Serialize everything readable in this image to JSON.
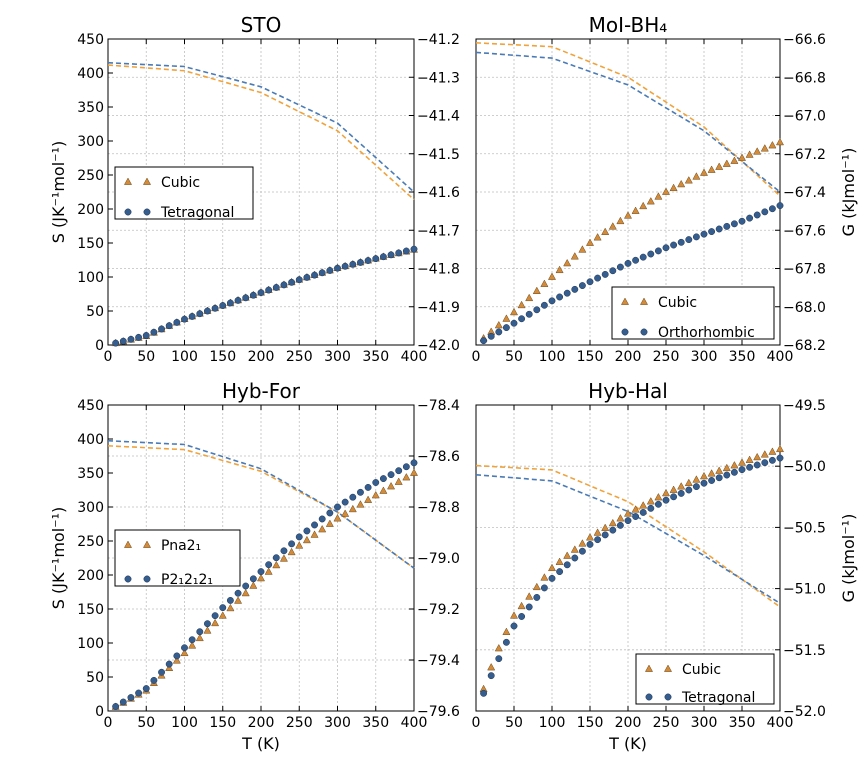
{
  "colors": {
    "orange": "#f0a33c",
    "orange_marker": "#d18b3a",
    "blue": "#355d8e",
    "blue_line": "#4a7bb6",
    "grid": "#bfbfbf"
  },
  "chart_data": [
    {
      "type": "scatter+line",
      "title": "STO",
      "xlabel": "",
      "ylabel": "S (JK⁻¹mol⁻¹)",
      "y2label": "",
      "xlim": [
        0,
        400
      ],
      "ylim": [
        0,
        450
      ],
      "y2lim": [
        -42.0,
        -41.2
      ],
      "xticks": [
        "0",
        "50",
        "100",
        "150",
        "200",
        "250",
        "300",
        "350",
        "400"
      ],
      "yticks": [
        "0",
        "50",
        "100",
        "150",
        "200",
        "250",
        "300",
        "350",
        "400",
        "450"
      ],
      "y2ticks": [
        "−42.0",
        "−41.9",
        "−41.8",
        "−41.7",
        "−41.6",
        "−41.5",
        "−41.4",
        "−41.3",
        "−41.2"
      ],
      "legend": {
        "placement": "center-left",
        "entries": [
          "Cubic",
          "Tetragonal"
        ]
      },
      "grid": true,
      "series": [
        {
          "name": "Cubic",
          "kind": "S",
          "marker": "triangle",
          "color": "orange",
          "x0": 10,
          "x1": 400,
          "points": [
            [
              0,
              0
            ],
            [
              50,
              13
            ],
            [
              100,
              38
            ],
            [
              150,
              58
            ],
            [
              200,
              77
            ],
            [
              250,
              96
            ],
            [
              300,
              113
            ],
            [
              350,
              127
            ],
            [
              400,
              140
            ]
          ]
        },
        {
          "name": "Tetragonal",
          "kind": "S",
          "marker": "circle",
          "color": "blue",
          "x0": 10,
          "x1": 400,
          "points": [
            [
              0,
              0
            ],
            [
              50,
              14
            ],
            [
              100,
              38
            ],
            [
              150,
              58
            ],
            [
              200,
              77
            ],
            [
              250,
              96
            ],
            [
              300,
              113
            ],
            [
              350,
              127
            ],
            [
              400,
              141
            ]
          ]
        },
        {
          "name": "Cubic",
          "kind": "G",
          "color": "orange",
          "points": [
            [
              0,
              -41.268
            ],
            [
              100,
              -41.283
            ],
            [
              200,
              -41.34
            ],
            [
              300,
              -41.44
            ],
            [
              400,
              -41.62
            ]
          ]
        },
        {
          "name": "Tetragonal",
          "kind": "G",
          "color": "blue",
          "points": [
            [
              0,
              -41.262
            ],
            [
              100,
              -41.272
            ],
            [
              200,
              -41.325
            ],
            [
              300,
              -41.42
            ],
            [
              400,
              -41.6
            ]
          ]
        }
      ]
    },
    {
      "type": "scatter+line",
      "title": "MoI-BH₄",
      "xlabel": "",
      "ylabel": "",
      "y2label": "G (kJmol⁻¹)",
      "xlim": [
        0,
        400
      ],
      "ylim": [
        0,
        450
      ],
      "y2lim": [
        -68.2,
        -66.6
      ],
      "xticks": [
        "0",
        "50",
        "100",
        "150",
        "200",
        "250",
        "300",
        "350",
        "400"
      ],
      "yticks": [],
      "y2ticks": [
        "−68.2",
        "−68.0",
        "−67.8",
        "−67.6",
        "−67.4",
        "−67.2",
        "−67.0",
        "−66.8",
        "−66.6"
      ],
      "legend": {
        "placement": "lower-right",
        "entries": [
          "Cubic",
          "Orthorhombic"
        ]
      },
      "grid": true,
      "series": [
        {
          "name": "Cubic",
          "kind": "S",
          "marker": "triangle",
          "color": "orange",
          "x0": 10,
          "x1": 400,
          "points": [
            [
              0,
              0
            ],
            [
              50,
              48
            ],
            [
              100,
              100
            ],
            [
              150,
              150
            ],
            [
              200,
              190
            ],
            [
              250,
              225
            ],
            [
              300,
              253
            ],
            [
              350,
              275
            ],
            [
              400,
              298
            ]
          ]
        },
        {
          "name": "Orthorhombic",
          "kind": "S",
          "marker": "circle",
          "color": "blue",
          "x0": 10,
          "x1": 400,
          "points": [
            [
              0,
              0
            ],
            [
              50,
              32
            ],
            [
              100,
              65
            ],
            [
              150,
              93
            ],
            [
              200,
              120
            ],
            [
              250,
              143
            ],
            [
              300,
              163
            ],
            [
              350,
              182
            ],
            [
              400,
              205
            ]
          ]
        },
        {
          "name": "Cubic",
          "kind": "G",
          "color": "orange",
          "points": [
            [
              0,
              -66.62
            ],
            [
              100,
              -66.64
            ],
            [
              200,
              -66.8
            ],
            [
              300,
              -67.06
            ],
            [
              400,
              -67.42
            ]
          ]
        },
        {
          "name": "Orthorhombic",
          "kind": "G",
          "color": "blue",
          "points": [
            [
              0,
              -66.67
            ],
            [
              100,
              -66.7
            ],
            [
              200,
              -66.84
            ],
            [
              300,
              -67.08
            ],
            [
              400,
              -67.4
            ]
          ]
        }
      ]
    },
    {
      "type": "scatter+line",
      "title": "Hyb-For",
      "xlabel": "T (K)",
      "ylabel": "S (JK⁻¹mol⁻¹)",
      "y2label": "",
      "xlim": [
        0,
        400
      ],
      "ylim": [
        0,
        450
      ],
      "y2lim": [
        -79.6,
        -78.4
      ],
      "xticks": [
        "0",
        "50",
        "100",
        "150",
        "200",
        "250",
        "300",
        "350",
        "400"
      ],
      "yticks": [
        "0",
        "50",
        "100",
        "150",
        "200",
        "250",
        "300",
        "350",
        "400",
        "450"
      ],
      "y2ticks": [
        "−79.6",
        "−79.4",
        "−79.2",
        "−79.0",
        "−78.8",
        "−78.6",
        "−78.4"
      ],
      "legend": {
        "placement": "center-left",
        "entries": [
          "Pna2₁",
          "P2₁2₁2₁"
        ]
      },
      "grid": true,
      "series": [
        {
          "name": "Pna2₁",
          "kind": "S",
          "marker": "triangle",
          "color": "orange",
          "x0": 10,
          "x1": 400,
          "points": [
            [
              0,
              0
            ],
            [
              50,
              30
            ],
            [
              100,
              85
            ],
            [
              150,
              140
            ],
            [
              200,
              195
            ],
            [
              250,
              243
            ],
            [
              300,
              283
            ],
            [
              350,
              317
            ],
            [
              400,
              350
            ]
          ]
        },
        {
          "name": "P2₁2₁2₁",
          "kind": "S",
          "marker": "circle",
          "color": "blue",
          "x0": 10,
          "x1": 400,
          "points": [
            [
              0,
              0
            ],
            [
              50,
              33
            ],
            [
              100,
              93
            ],
            [
              150,
              152
            ],
            [
              200,
              205
            ],
            [
              250,
              256
            ],
            [
              300,
              300
            ],
            [
              350,
              336
            ],
            [
              400,
              365
            ]
          ]
        },
        {
          "name": "Pna2₁",
          "kind": "G",
          "color": "orange",
          "points": [
            [
              0,
              -78.56
            ],
            [
              100,
              -78.575
            ],
            [
              200,
              -78.66
            ],
            [
              300,
              -78.82
            ],
            [
              400,
              -79.04
            ]
          ]
        },
        {
          "name": "P2₁2₁2₁",
          "kind": "G",
          "color": "blue",
          "points": [
            [
              0,
              -78.54
            ],
            [
              100,
              -78.555
            ],
            [
              200,
              -78.65
            ],
            [
              300,
              -78.82
            ],
            [
              400,
              -79.04
            ]
          ]
        }
      ]
    },
    {
      "type": "scatter+line",
      "title": "Hyb-Hal",
      "xlabel": "T (K)",
      "ylabel": "",
      "y2label": "G (kJmol⁻¹)",
      "xlim": [
        0,
        400
      ],
      "ylim": [
        0,
        450
      ],
      "y2lim": [
        -52.0,
        -49.5
      ],
      "xticks": [
        "0",
        "50",
        "100",
        "150",
        "200",
        "250",
        "300",
        "350",
        "400"
      ],
      "yticks": [],
      "y2ticks": [
        "−52.0",
        "−51.5",
        "−51.0",
        "−50.5",
        "−50.0",
        "−49.5"
      ],
      "legend": {
        "placement": "lower-right",
        "entries": [
          "Cubic",
          "Tetragonal"
        ]
      },
      "grid": true,
      "series": [
        {
          "name": "Cubic",
          "kind": "S",
          "marker": "triangle",
          "color": "orange",
          "x0": 10,
          "x1": 400,
          "points": [
            [
              0,
              0
            ],
            [
              25,
              80
            ],
            [
              50,
              140
            ],
            [
              100,
              210
            ],
            [
              150,
              255
            ],
            [
              200,
              290
            ],
            [
              250,
              320
            ],
            [
              300,
              345
            ],
            [
              350,
              365
            ],
            [
              400,
              385
            ]
          ]
        },
        {
          "name": "Tetragonal",
          "kind": "S",
          "marker": "circle",
          "color": "blue",
          "x0": 10,
          "x1": 400,
          "points": [
            [
              0,
              0
            ],
            [
              25,
              65
            ],
            [
              50,
              125
            ],
            [
              100,
              195
            ],
            [
              150,
              245
            ],
            [
              200,
              280
            ],
            [
              250,
              310
            ],
            [
              300,
              335
            ],
            [
              350,
              355
            ],
            [
              400,
              372
            ]
          ]
        },
        {
          "name": "Cubic",
          "kind": "G",
          "color": "orange",
          "points": [
            [
              0,
              -49.995
            ],
            [
              100,
              -50.03
            ],
            [
              200,
              -50.29
            ],
            [
              300,
              -50.7
            ],
            [
              400,
              -51.15
            ]
          ]
        },
        {
          "name": "Tetragonal",
          "kind": "G",
          "color": "blue",
          "points": [
            [
              0,
              -50.07
            ],
            [
              100,
              -50.12
            ],
            [
              200,
              -50.37
            ],
            [
              300,
              -50.73
            ],
            [
              400,
              -51.12
            ]
          ]
        }
      ]
    }
  ]
}
